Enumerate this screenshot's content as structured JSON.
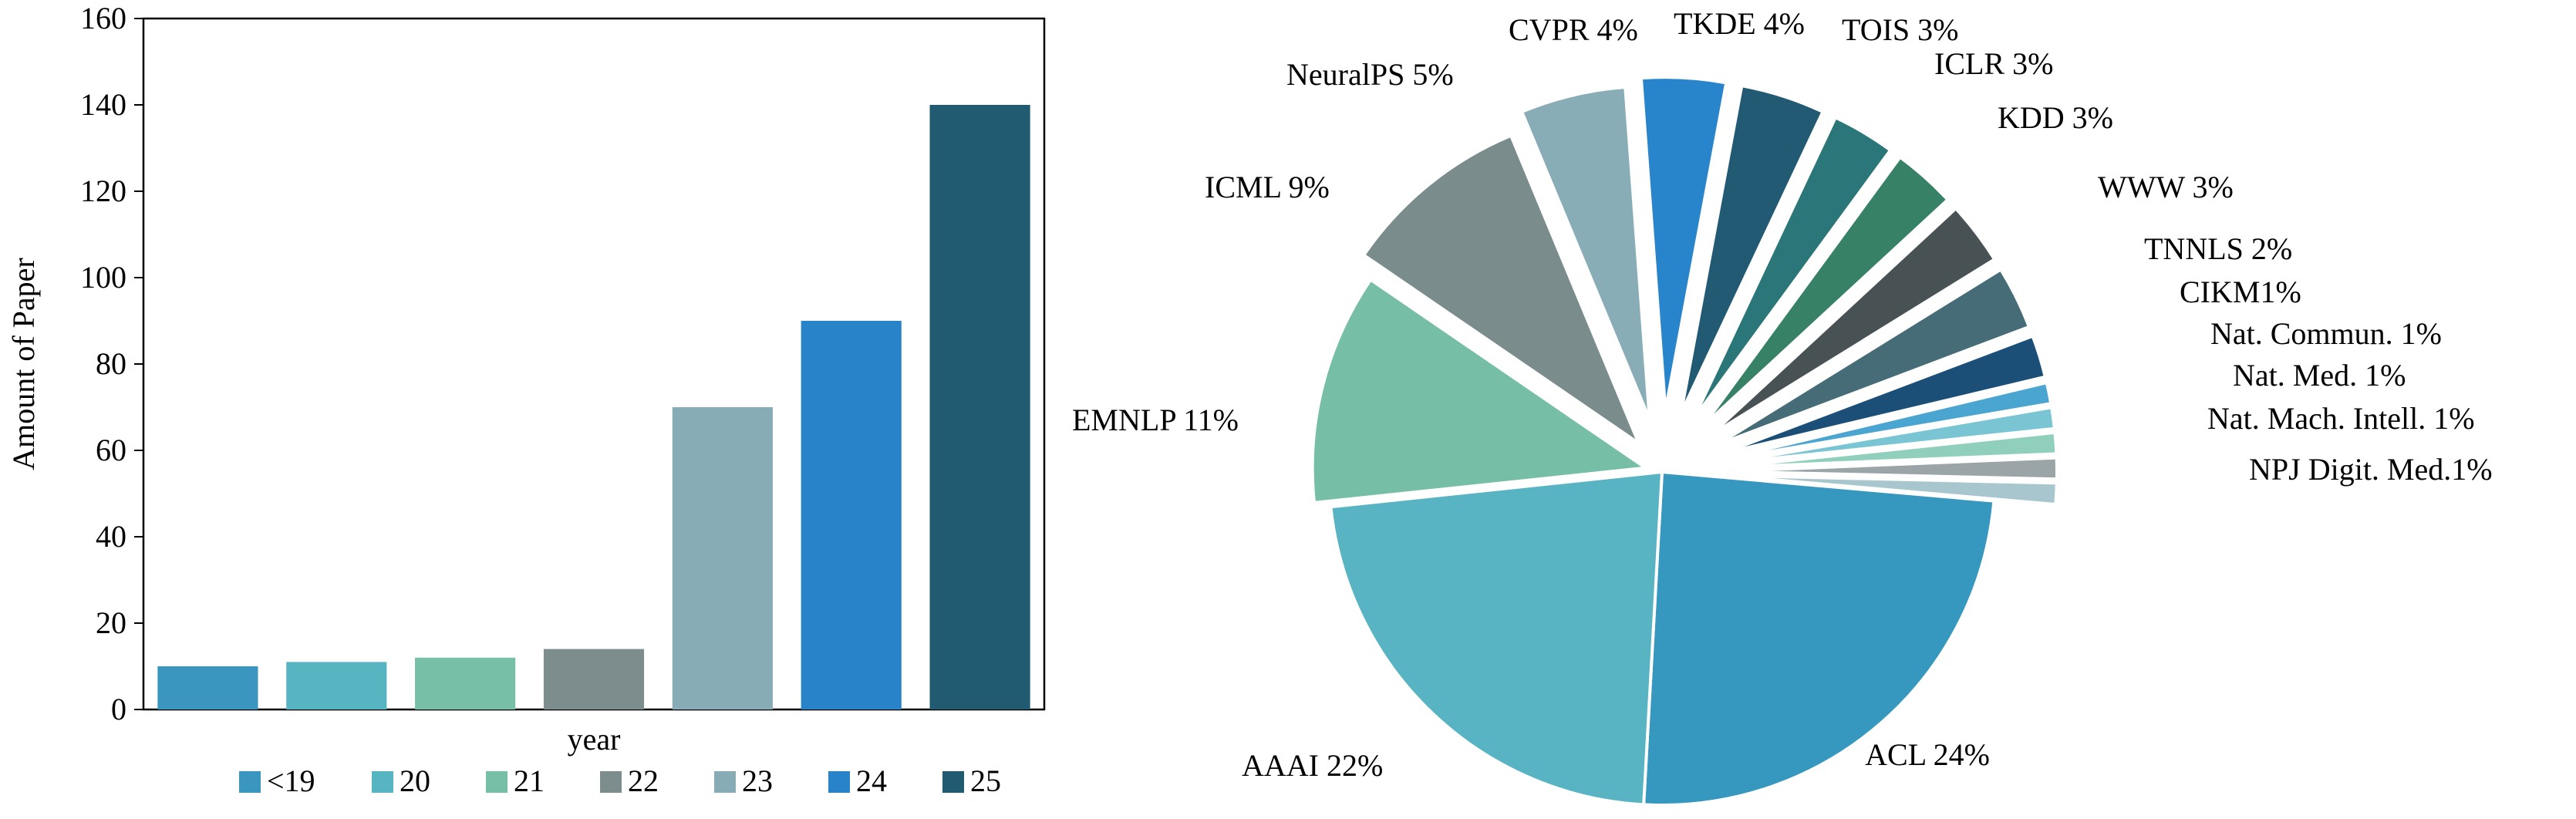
{
  "chart_data": [
    {
      "type": "bar",
      "xlabel": "year",
      "ylabel": "Amount of Paper",
      "ylim": [
        0,
        160
      ],
      "yticks": [
        0,
        20,
        40,
        60,
        80,
        100,
        120,
        140,
        160
      ],
      "grid": false,
      "legend_position": "bottom",
      "series": [
        {
          "name": "<19",
          "value": 10,
          "color": "#3b96bf"
        },
        {
          "name": "20",
          "value": 11,
          "color": "#57b5c2"
        },
        {
          "name": "21",
          "value": 12,
          "color": "#77bfa6"
        },
        {
          "name": "22",
          "value": 14,
          "color": "#7d8c8c"
        },
        {
          "name": "23",
          "value": 70,
          "color": "#87acb6"
        },
        {
          "name": "24",
          "value": 90,
          "color": "#2983c9"
        },
        {
          "name": "25",
          "value": 140,
          "color": "#215b72"
        }
      ]
    },
    {
      "type": "pie",
      "slices": [
        {
          "label": "ACL 24%",
          "value": 24,
          "color": "#3697bf"
        },
        {
          "label": "AAAI 22%",
          "value": 22,
          "color": "#58b4c2"
        },
        {
          "label": "EMNLP 11%",
          "value": 11,
          "color": "#76bea6"
        },
        {
          "label": "ICML 9%",
          "value": 9,
          "color": "#7b8c8c"
        },
        {
          "label": "NeuralPS 5%",
          "value": 5,
          "color": "#88adb7"
        },
        {
          "label": "CVPR 4%",
          "value": 4,
          "color": "#2884cb"
        },
        {
          "label": "TKDE 4%",
          "value": 4,
          "color": "#215a72"
        },
        {
          "label": "TOIS 3%",
          "value": 3,
          "color": "#2a7678"
        },
        {
          "label": "ICLR 3%",
          "value": 3,
          "color": "#378166"
        },
        {
          "label": "KDD 3%",
          "value": 3,
          "color": "#485255"
        },
        {
          "label": "WWW 3%",
          "value": 3,
          "color": "#456c77"
        },
        {
          "label": "TNNLS 2%",
          "value": 2,
          "color": "#1c4f78"
        },
        {
          "label": "CIKM1%",
          "value": 1,
          "color": "#4aa5d0"
        },
        {
          "label": "Nat. Commun. 1%",
          "value": 1,
          "color": "#79c5d4"
        },
        {
          "label": "Nat. Med. 1%",
          "value": 1,
          "color": "#90cfbc"
        },
        {
          "label": "Nat. Mach. Intell. 1%",
          "value": 1,
          "color": "#9ba4a6"
        },
        {
          "label": "NPJ Digit. Med.1%",
          "value": 1,
          "color": "#a8c6ce"
        }
      ]
    }
  ]
}
